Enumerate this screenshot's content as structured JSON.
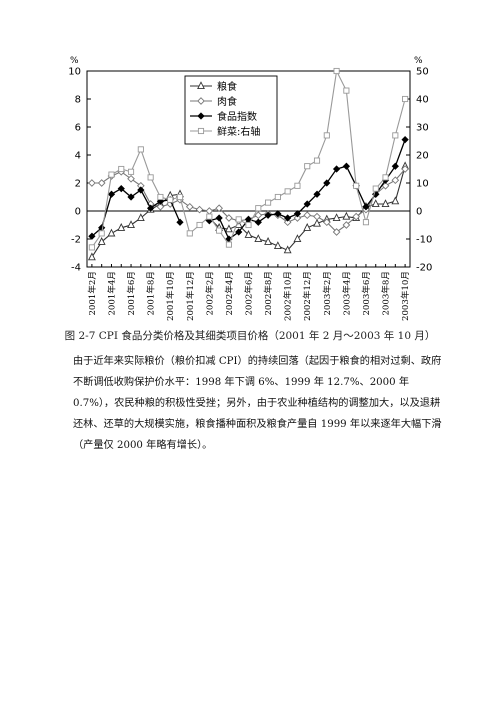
{
  "chart_data": {
    "type": "line",
    "title": "",
    "left_unit": "%",
    "right_unit": "%",
    "ylim_left": [
      -4,
      10
    ],
    "ylim_right": [
      -20,
      50
    ],
    "left_ticks": [
      10,
      8,
      6,
      4,
      2,
      0,
      -2,
      -4
    ],
    "right_ticks": [
      50,
      40,
      30,
      20,
      10,
      0,
      -10,
      -20
    ],
    "x": [
      "2001年2月",
      "2001年3月",
      "2001年4月",
      "2001年5月",
      "2001年6月",
      "2001年7月",
      "2001年8月",
      "2001年9月",
      "2001年10月",
      "2001年11月",
      "2001年12月",
      "2002年1月",
      "2002年2月",
      "2002年3月",
      "2002年4月",
      "2002年5月",
      "2002年6月",
      "2002年7月",
      "2002年8月",
      "2002年9月",
      "2002年10月",
      "2002年11月",
      "2002年12月",
      "2003年1月",
      "2003年2月",
      "2003年3月",
      "2003年4月",
      "2003年5月",
      "2003年6月",
      "2003年7月",
      "2003年8月",
      "2003年9月",
      "2003年10月"
    ],
    "x_tick_labels": [
      "2001年2月",
      "2001年4月",
      "2001年6月",
      "2001年8月",
      "2001年10月",
      "2001年12月",
      "2002年2月",
      "2002年4月",
      "2002年6月",
      "2002年8月",
      "2002年10月",
      "2002年12月",
      "2003年2月",
      "2003年4月",
      "2003年6月",
      "2003年8月",
      "2003年10月"
    ],
    "legend_position": "top-center",
    "series": [
      {
        "name": "粮食",
        "axis": "left",
        "marker": "triangle",
        "values": [
          -3.3,
          -2.2,
          -1.6,
          -1.2,
          -1.0,
          -0.5,
          0.1,
          0.5,
          1.1,
          1.2,
          null,
          null,
          -0.5,
          -1.2,
          -1.3,
          -1.0,
          -1.7,
          -2.0,
          -2.2,
          -2.5,
          -2.8,
          -2.0,
          -1.2,
          -0.9,
          -0.6,
          -0.5,
          -0.4,
          -0.5,
          0.3,
          0.5,
          0.5,
          0.7,
          3.2
        ]
      },
      {
        "name": "肉食",
        "axis": "left",
        "marker": "diamond-open",
        "values": [
          2.0,
          2.0,
          2.5,
          2.8,
          2.3,
          1.8,
          0.5,
          0.3,
          0.5,
          0.8,
          0.3,
          0.1,
          0.0,
          0.2,
          -0.5,
          -0.7,
          -0.6,
          -0.3,
          -0.2,
          -0.3,
          -0.8,
          -0.5,
          -0.3,
          -0.4,
          -0.8,
          -1.5,
          -1.0,
          -0.4,
          0.1,
          1.2,
          1.8,
          2.2,
          3.0
        ]
      },
      {
        "name": "食品指数",
        "axis": "left",
        "marker": "diamond-filled",
        "values": [
          -1.8,
          -1.2,
          1.2,
          1.6,
          1.0,
          1.5,
          0.2,
          0.7,
          0.8,
          -0.8,
          null,
          null,
          -0.7,
          -0.5,
          -2.0,
          -1.5,
          -0.6,
          -0.8,
          -0.3,
          -0.2,
          -0.5,
          -0.2,
          0.5,
          1.2,
          2.0,
          3.0,
          3.2,
          1.8,
          0.3,
          1.2,
          2.2,
          3.2,
          5.1
        ]
      },
      {
        "name": "鲜菜:右轴",
        "axis": "right",
        "marker": "square-open",
        "values": [
          -13,
          -8,
          13,
          15,
          14,
          22,
          12,
          5,
          4,
          5,
          -8,
          -5,
          -2,
          -7,
          -12,
          -3,
          -5,
          1,
          3,
          5,
          7,
          9,
          16,
          18,
          27,
          50,
          43,
          9,
          -4,
          8,
          12,
          27,
          40
        ]
      }
    ]
  },
  "caption": "图 2-7  CPI 食品分类价格及其细类项目价格（2001 年 2 月～2003 年 10 月）",
  "body_text": "由于近年来实际粮价（粮价扣减 CPI）的持续回落（起因于粮食的相对过剩、政府不断调低收购保护价水平：1998 年下调 6%、1999 年 12.7%、2000 年 0.7%），农民种粮的积极性受挫；另外，由于农业种植结构的调整加大，以及退耕还林、还草的大规模实施，粮食播种面积及粮食产量自 1999 年以来逐年大幅下滑（产量仅 2000 年略有增长）。"
}
